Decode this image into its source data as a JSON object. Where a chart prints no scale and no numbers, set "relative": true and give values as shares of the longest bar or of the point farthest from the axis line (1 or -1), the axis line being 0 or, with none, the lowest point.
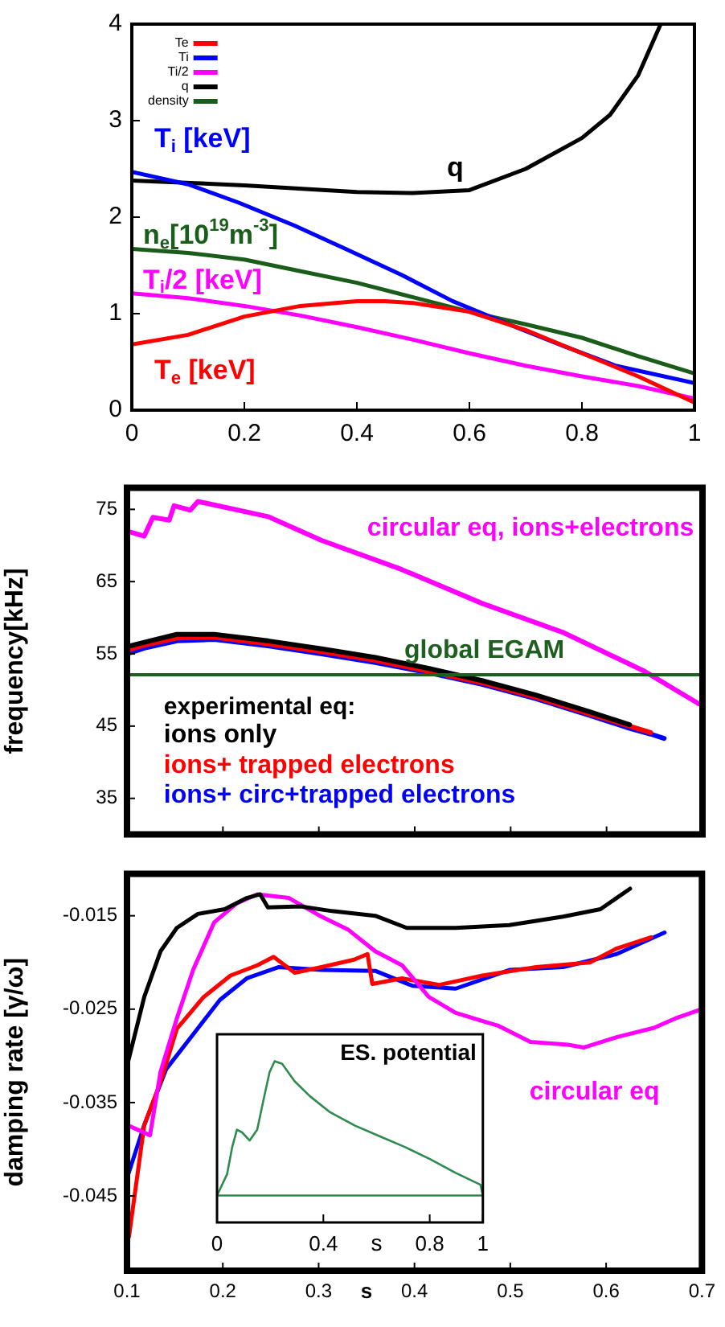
{
  "chart_data": [
    {
      "type": "line",
      "xlim": [
        0,
        1
      ],
      "xticks": [
        0,
        0.2,
        0.4,
        0.6,
        0.8,
        1
      ],
      "ylim": [
        0,
        4
      ],
      "yticks": [
        0,
        1,
        2,
        3,
        4
      ],
      "legend": "top left",
      "annotations": [
        "T$_{i}$ [keV]",
        "q",
        "n$_{e}$[10$^{19}$m$^{-3}$]",
        "T$_{i}$/2 [keV]",
        "T$_{e}$ [keV]"
      ],
      "series": [
        {
          "name": "Te",
          "color": "#ff0000",
          "x": [
            0,
            0.1,
            0.2,
            0.3,
            0.4,
            0.45,
            0.5,
            0.6,
            0.7,
            0.8,
            0.9,
            1
          ],
          "values": [
            0.68,
            0.78,
            0.97,
            1.08,
            1.13,
            1.13,
            1.11,
            1.02,
            0.83,
            0.59,
            0.35,
            0.08
          ]
        },
        {
          "name": "Ti",
          "color": "#0000ff",
          "x": [
            0,
            0.1,
            0.19,
            0.29,
            0.38,
            0.48,
            0.57,
            0.67,
            0.765,
            0.86,
            1
          ],
          "values": [
            2.47,
            2.34,
            2.15,
            1.91,
            1.67,
            1.4,
            1.13,
            0.89,
            0.67,
            0.46,
            0.28
          ]
        },
        {
          "name": "Ti/2",
          "color": "#ff00ff",
          "x": [
            0,
            0.1,
            0.2,
            0.3,
            0.4,
            0.5,
            0.6,
            0.7,
            0.8,
            0.9,
            1
          ],
          "values": [
            1.21,
            1.16,
            1.08,
            0.98,
            0.86,
            0.73,
            0.59,
            0.46,
            0.35,
            0.25,
            0.12
          ]
        },
        {
          "name": "q",
          "color": "#000000",
          "x": [
            0,
            0.2,
            0.4,
            0.5,
            0.6,
            0.7,
            0.8,
            0.85,
            0.9,
            0.94
          ],
          "values": [
            2.38,
            2.33,
            2.26,
            2.25,
            2.28,
            2.5,
            2.82,
            3.06,
            3.47,
            4
          ]
        },
        {
          "name": "density",
          "color": "#1a5c1a",
          "x": [
            0,
            0.1,
            0.2,
            0.3,
            0.4,
            0.5,
            0.6,
            0.7,
            0.8,
            0.9,
            1
          ],
          "values": [
            1.67,
            1.63,
            1.56,
            1.44,
            1.32,
            1.17,
            1.02,
            0.89,
            0.75,
            0.56,
            0.38
          ]
        }
      ]
    },
    {
      "type": "line",
      "xlim": [
        0.1,
        0.7
      ],
      "xticks": [
        0.1,
        0.2,
        0.3,
        0.4,
        0.5,
        0.6,
        0.7
      ],
      "ylim": [
        30,
        78
      ],
      "yticks": [
        35,
        45,
        55,
        65,
        75
      ],
      "tick_labels": "y",
      "ylabel": "frequency[kHz]",
      "annotations": [
        "experimental eq:"
      ],
      "ref_lines": [
        {
          "axis": "y",
          "value": 52.1,
          "label": "global EGAM",
          "color": "#1e5e1e"
        }
      ],
      "series": [
        {
          "name": "circular eq, ions+electrons",
          "color": "#ff00ff",
          "x": [
            0.1,
            0.118,
            0.127,
            0.144,
            0.149,
            0.166,
            0.174,
            0.247,
            0.303,
            0.386,
            0.47,
            0.554,
            0.638,
            0.696
          ],
          "values": [
            72,
            71.3,
            73.9,
            73.5,
            75.5,
            74.9,
            76.1,
            74,
            70.7,
            66.7,
            62,
            58,
            52.7,
            48.1
          ]
        },
        {
          "name": "ions only",
          "color": "#000000",
          "x": [
            0.1,
            0.118,
            0.152,
            0.191,
            0.247,
            0.303,
            0.359,
            0.414,
            0.47,
            0.526,
            0.582,
            0.624
          ],
          "values": [
            56,
            56.6,
            57.7,
            57.7,
            56.8,
            55.7,
            54.5,
            53,
            51.3,
            49.3,
            47,
            45.2
          ]
        },
        {
          "name": "ions+ trapped electrons",
          "color": "#ff0000",
          "x": [
            0.1,
            0.118,
            0.152,
            0.191,
            0.247,
            0.303,
            0.359,
            0.414,
            0.47,
            0.526,
            0.582,
            0.624,
            0.646
          ],
          "values": [
            55.5,
            56.2,
            57.2,
            57.3,
            56.4,
            55.3,
            54.1,
            52.6,
            51,
            49,
            46.7,
            45,
            44.1
          ]
        },
        {
          "name": "ions+ circ+trapped electrons",
          "color": "#0000ff",
          "x": [
            0.1,
            0.118,
            0.152,
            0.191,
            0.247,
            0.303,
            0.359,
            0.414,
            0.47,
            0.526,
            0.582,
            0.624,
            0.646,
            0.66
          ],
          "values": [
            55,
            55.8,
            56.8,
            57,
            56.1,
            55,
            53.8,
            52.4,
            50.8,
            48.8,
            46.5,
            44.7,
            43.9,
            43.3
          ]
        }
      ]
    },
    {
      "type": "line",
      "xlim": [
        0.1,
        0.7
      ],
      "xticks": [
        0.1,
        0.2,
        0.3,
        0.4,
        0.5,
        0.6,
        0.7
      ],
      "ylim": [
        -0.053,
        -0.0105
      ],
      "yticks": [
        -0.045,
        -0.035,
        -0.025,
        -0.015
      ],
      "xlabel": "s",
      "ylabel": "damping rate [γ/ω]",
      "series": [
        {
          "color": "#000000",
          "x": [
            0.1,
            0.118,
            0.135,
            0.152,
            0.174,
            0.202,
            0.225,
            0.239,
            0.247,
            0.281,
            0.314,
            0.359,
            0.392,
            0.443,
            0.499,
            0.555,
            0.594,
            0.625
          ],
          "values": [
            -0.0311,
            -0.0237,
            -0.0188,
            -0.0163,
            -0.0148,
            -0.0143,
            -0.0131,
            -0.0127,
            -0.0141,
            -0.014,
            -0.0145,
            -0.015,
            -0.0163,
            -0.0163,
            -0.016,
            -0.0151,
            -0.0143,
            -0.0121
          ]
        },
        {
          "name": "circular eq",
          "color": "#ff00ff",
          "x": [
            0.1,
            0.124,
            0.135,
            0.152,
            0.169,
            0.191,
            0.214,
            0.236,
            0.269,
            0.303,
            0.331,
            0.359,
            0.387,
            0.415,
            0.443,
            0.488,
            0.521,
            0.56,
            0.577,
            0.611,
            0.65,
            0.672,
            0.697
          ],
          "values": [
            -0.0374,
            -0.0385,
            -0.0317,
            -0.026,
            -0.0208,
            -0.0157,
            -0.0137,
            -0.0127,
            -0.0131,
            -0.0151,
            -0.0165,
            -0.0188,
            -0.0203,
            -0.0237,
            -0.0254,
            -0.0268,
            -0.0285,
            -0.0288,
            -0.0291,
            -0.028,
            -0.027,
            -0.026,
            -0.0251
          ]
        },
        {
          "color": "#ff0000",
          "x": [
            0.102,
            0.118,
            0.135,
            0.152,
            0.18,
            0.208,
            0.236,
            0.253,
            0.275,
            0.303,
            0.337,
            0.351,
            0.356,
            0.387,
            0.426,
            0.471,
            0.527,
            0.583,
            0.611,
            0.647
          ],
          "values": [
            -0.0494,
            -0.0374,
            -0.0328,
            -0.0271,
            -0.0237,
            -0.0214,
            -0.0203,
            -0.0194,
            -0.0211,
            -0.0205,
            -0.0197,
            -0.0191,
            -0.0223,
            -0.0217,
            -0.0224,
            -0.0214,
            -0.0205,
            -0.02,
            -0.0185,
            -0.0173
          ]
        },
        {
          "color": "#0000ff",
          "x": [
            0.1,
            0.118,
            0.141,
            0.169,
            0.197,
            0.225,
            0.258,
            0.303,
            0.359,
            0.398,
            0.443,
            0.499,
            0.555,
            0.611,
            0.661
          ],
          "values": [
            -0.0431,
            -0.0374,
            -0.0314,
            -0.0277,
            -0.024,
            -0.0217,
            -0.0205,
            -0.0208,
            -0.0209,
            -0.0225,
            -0.0228,
            -0.0208,
            -0.0205,
            -0.0191,
            -0.0168
          ]
        }
      ]
    },
    {
      "type": "line",
      "relative": true,
      "title": "ES. potential",
      "xlabel": "s",
      "xlim": [
        0,
        1
      ],
      "xticks": [
        0,
        0.4,
        0.8,
        1
      ],
      "tick_labels": "x",
      "series": [
        {
          "color": "#2e8b4f",
          "x": [
            0,
            0.038,
            0.057,
            0.075,
            0.094,
            0.123,
            0.151,
            0.179,
            0.198,
            0.217,
            0.245,
            0.292,
            0.349,
            0.425,
            0.519,
            0.613,
            0.708,
            0.802,
            0.896,
            0.991,
            1
          ],
          "values": [
            0,
            0.16,
            0.36,
            0.49,
            0.47,
            0.41,
            0.49,
            0.75,
            0.92,
            1,
            0.98,
            0.85,
            0.74,
            0.62,
            0.52,
            0.44,
            0.36,
            0.27,
            0.17,
            0.08,
            0
          ]
        },
        {
          "color": "#2e8b4f",
          "x": [
            0,
            1
          ],
          "values": [
            0,
            0
          ]
        }
      ]
    }
  ]
}
